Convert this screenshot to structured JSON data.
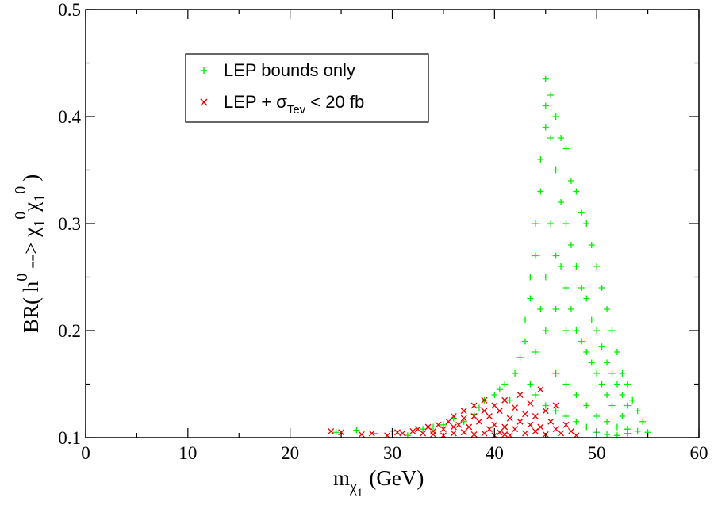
{
  "chart_data": {
    "type": "scatter",
    "xlabel": {
      "main": "m",
      "sub": "χ",
      "subsub": "1",
      "unit": "(GeV)"
    },
    "ylabel": {
      "text": "BR( h",
      "sup1": "0",
      "arrow": "--> χ",
      "sub1": "1",
      "sup2": "0",
      "chi2": "χ",
      "sub2": "1",
      "sup3": "0",
      "close": ")"
    },
    "xlim": [
      0,
      60
    ],
    "ylim": [
      0.1,
      0.5
    ],
    "x_ticks": [
      "0",
      "10",
      "20",
      "30",
      "40",
      "50",
      "60"
    ],
    "y_ticks": [
      "0.1",
      "0.2",
      "0.3",
      "0.4",
      "0.5"
    ],
    "grid": false,
    "legend_position": "top-left",
    "series": [
      {
        "name": "LEP bounds only",
        "color": "#00ee00",
        "marker": "plus",
        "points": [
          [
            24.5,
            0.105
          ],
          [
            26.5,
            0.107
          ],
          [
            28.2,
            0.104
          ],
          [
            30,
            0.106
          ],
          [
            31.5,
            0.102
          ],
          [
            33,
            0.108
          ],
          [
            34,
            0.11
          ],
          [
            35,
            0.112
          ],
          [
            36,
            0.118
          ],
          [
            37,
            0.115
          ],
          [
            38,
            0.122
          ],
          [
            38.5,
            0.128
          ],
          [
            39,
            0.135
          ],
          [
            40,
            0.14
          ],
          [
            40.5,
            0.145
          ],
          [
            41,
            0.15
          ],
          [
            41.5,
            0.135
          ],
          [
            42,
            0.16
          ],
          [
            42.5,
            0.175
          ],
          [
            43,
            0.19
          ],
          [
            43,
            0.21
          ],
          [
            43.5,
            0.23
          ],
          [
            43.5,
            0.25
          ],
          [
            44,
            0.27
          ],
          [
            44,
            0.3
          ],
          [
            44.5,
            0.33
          ],
          [
            44.5,
            0.36
          ],
          [
            45,
            0.39
          ],
          [
            45,
            0.41
          ],
          [
            45,
            0.435
          ],
          [
            45.5,
            0.42
          ],
          [
            45.5,
            0.38
          ],
          [
            46,
            0.4
          ],
          [
            46,
            0.35
          ],
          [
            46.5,
            0.38
          ],
          [
            46.5,
            0.32
          ],
          [
            47,
            0.37
          ],
          [
            47,
            0.3
          ],
          [
            47.5,
            0.34
          ],
          [
            47.5,
            0.28
          ],
          [
            48,
            0.33
          ],
          [
            48,
            0.26
          ],
          [
            48.5,
            0.31
          ],
          [
            48.5,
            0.24
          ],
          [
            49,
            0.3
          ],
          [
            49,
            0.23
          ],
          [
            49.5,
            0.28
          ],
          [
            49.5,
            0.21
          ],
          [
            50,
            0.26
          ],
          [
            50,
            0.2
          ],
          [
            50.5,
            0.24
          ],
          [
            50.5,
            0.185
          ],
          [
            51,
            0.22
          ],
          [
            51,
            0.17
          ],
          [
            51.5,
            0.2
          ],
          [
            51.5,
            0.16
          ],
          [
            52,
            0.18
          ],
          [
            52,
            0.15
          ],
          [
            52.5,
            0.16
          ],
          [
            52.5,
            0.14
          ],
          [
            53,
            0.15
          ],
          [
            53,
            0.13
          ],
          [
            53.5,
            0.135
          ],
          [
            54,
            0.125
          ],
          [
            54.5,
            0.115
          ],
          [
            55,
            0.105
          ],
          [
            44,
            0.18
          ],
          [
            45,
            0.2
          ],
          [
            46,
            0.22
          ],
          [
            47,
            0.24
          ],
          [
            48,
            0.2
          ],
          [
            49,
            0.18
          ],
          [
            50,
            0.16
          ],
          [
            51,
            0.14
          ],
          [
            46,
            0.16
          ],
          [
            47,
            0.15
          ],
          [
            48,
            0.14
          ],
          [
            49,
            0.13
          ],
          [
            50,
            0.12
          ],
          [
            51,
            0.115
          ],
          [
            52,
            0.11
          ],
          [
            53,
            0.108
          ],
          [
            45,
            0.25
          ],
          [
            46,
            0.27
          ],
          [
            47,
            0.2
          ],
          [
            44.5,
            0.22
          ],
          [
            45.5,
            0.3
          ],
          [
            46.5,
            0.26
          ],
          [
            47.5,
            0.22
          ],
          [
            48.5,
            0.19
          ],
          [
            49.5,
            0.17
          ],
          [
            50.5,
            0.15
          ],
          [
            51.5,
            0.13
          ],
          [
            52.5,
            0.12
          ],
          [
            43.5,
            0.15
          ],
          [
            44,
            0.14
          ],
          [
            45,
            0.13
          ],
          [
            46,
            0.125
          ],
          [
            47,
            0.12
          ],
          [
            48,
            0.115
          ],
          [
            49,
            0.11
          ],
          [
            50,
            0.105
          ],
          [
            51,
            0.103
          ],
          [
            52,
            0.102
          ],
          [
            53,
            0.104
          ],
          [
            54,
            0.106
          ]
        ]
      },
      {
        "name": "LEP  +  σ",
        "name_sub": "Tev",
        "name_tail": " < 20 fb",
        "color": "#ee0000",
        "marker": "cross",
        "points": [
          [
            24,
            0.106
          ],
          [
            25,
            0.105
          ],
          [
            27,
            0.103
          ],
          [
            28,
            0.104
          ],
          [
            29.5,
            0.102
          ],
          [
            30.5,
            0.105
          ],
          [
            31,
            0.104
          ],
          [
            32,
            0.106
          ],
          [
            32.5,
            0.108
          ],
          [
            33,
            0.104
          ],
          [
            33.5,
            0.11
          ],
          [
            34,
            0.106
          ],
          [
            34.5,
            0.112
          ],
          [
            35,
            0.108
          ],
          [
            35.5,
            0.115
          ],
          [
            36,
            0.11
          ],
          [
            36,
            0.12
          ],
          [
            36.5,
            0.112
          ],
          [
            37,
            0.118
          ],
          [
            37,
            0.125
          ],
          [
            37.5,
            0.11
          ],
          [
            38,
            0.12
          ],
          [
            38,
            0.13
          ],
          [
            38.5,
            0.115
          ],
          [
            39,
            0.125
          ],
          [
            39,
            0.135
          ],
          [
            39.5,
            0.108
          ],
          [
            39.5,
            0.12
          ],
          [
            40,
            0.112
          ],
          [
            40,
            0.13
          ],
          [
            40.5,
            0.105
          ],
          [
            40.5,
            0.125
          ],
          [
            41,
            0.11
          ],
          [
            41,
            0.135
          ],
          [
            41.5,
            0.118
          ],
          [
            41.5,
            0.102
          ],
          [
            42,
            0.128
          ],
          [
            42,
            0.108
          ],
          [
            42.5,
            0.14
          ],
          [
            42.5,
            0.115
          ],
          [
            43,
            0.122
          ],
          [
            43,
            0.104
          ],
          [
            43.5,
            0.132
          ],
          [
            43.5,
            0.112
          ],
          [
            44,
            0.12
          ],
          [
            44,
            0.106
          ],
          [
            44.5,
            0.145
          ],
          [
            44.5,
            0.11
          ],
          [
            45,
            0.125
          ],
          [
            45,
            0.103
          ],
          [
            45.5,
            0.115
          ],
          [
            46,
            0.108
          ],
          [
            46,
            0.13
          ],
          [
            46.5,
            0.104
          ],
          [
            47,
            0.112
          ],
          [
            47.5,
            0.106
          ],
          [
            48,
            0.102
          ],
          [
            37,
            0.105
          ],
          [
            38,
            0.103
          ],
          [
            39,
            0.104
          ],
          [
            40,
            0.102
          ],
          [
            41,
            0.103
          ],
          [
            36,
            0.104
          ],
          [
            35,
            0.102
          ],
          [
            34,
            0.103
          ]
        ]
      }
    ]
  }
}
